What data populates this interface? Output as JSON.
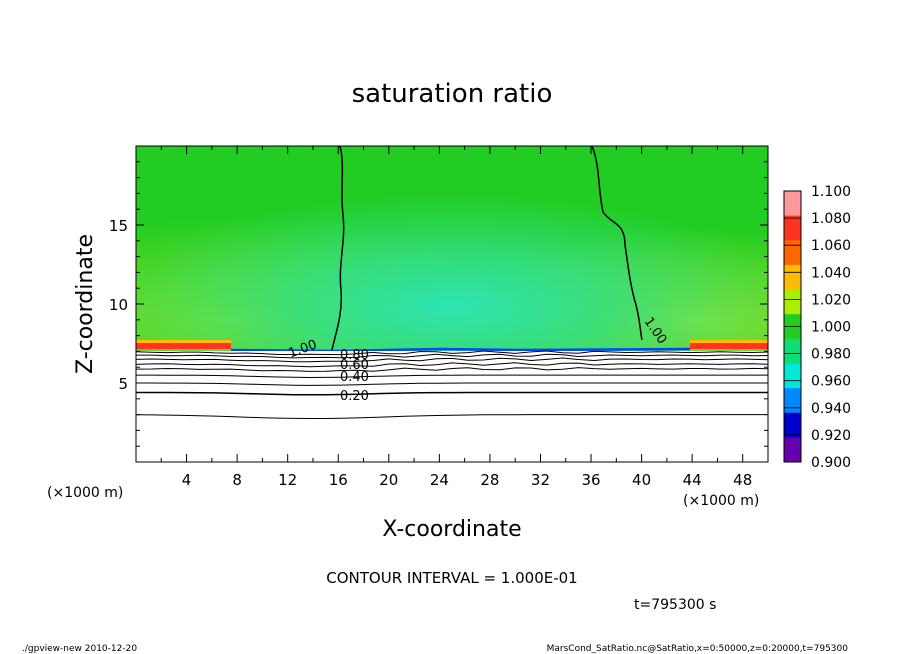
{
  "chart_data": {
    "type": "heatmap",
    "title": "saturation ratio",
    "xlabel": "X-coordinate",
    "ylabel": "Z-coordinate",
    "x_unit": "(×1000 m)",
    "z_unit": "(×1000 m)",
    "xlim": [
      0,
      50
    ],
    "ylim": [
      0,
      20
    ],
    "x_ticks": [
      4,
      8,
      12,
      16,
      20,
      24,
      28,
      32,
      36,
      40,
      44,
      48
    ],
    "y_ticks": [
      5,
      10,
      15
    ],
    "colorbar": {
      "levels": [
        "1.100",
        "1.080",
        "1.060",
        "1.040",
        "1.020",
        "1.000",
        "0.980",
        "0.960",
        "0.940",
        "0.920",
        "0.900"
      ],
      "colors": [
        "#ff9999",
        "#ff3322",
        "#ff6600",
        "#ffbb00",
        "#aaee00",
        "#22cc22",
        "#11dd77",
        "#00e8d8",
        "#0088ff",
        "#0000cc",
        "#6600aa"
      ]
    },
    "contour_interval_text": "CONTOUR INTERVAL = 1.000E-01",
    "time_text": "t=795300 s",
    "contour_labels": [
      "1.00",
      "1.00",
      "0.80",
      "0.60",
      "0.40",
      "0.20"
    ],
    "field_description": {
      "upper_region_saturation": 1.0,
      "central_column_saturation": 0.97,
      "cloud_base_height_km": 7.3,
      "subsaturated_layer_top_km": 7.0,
      "contour_1_00_x_km": [
        16.2,
        36.5
      ]
    }
  },
  "footer": {
    "left": "./gpview-new  2010-12-20",
    "right": "MarsCond_SatRatio.nc@SatRatio,x=0:50000,z=0:20000,t=795300"
  },
  "colors": {
    "background": "#ffffff",
    "saturated_green": "#22cc22",
    "subsaturated_cyan": "#33e08c",
    "edge_lime": "#7fe02a",
    "cloud_base_red": "#ff3322",
    "cloud_base_blue": "#0044ff"
  }
}
